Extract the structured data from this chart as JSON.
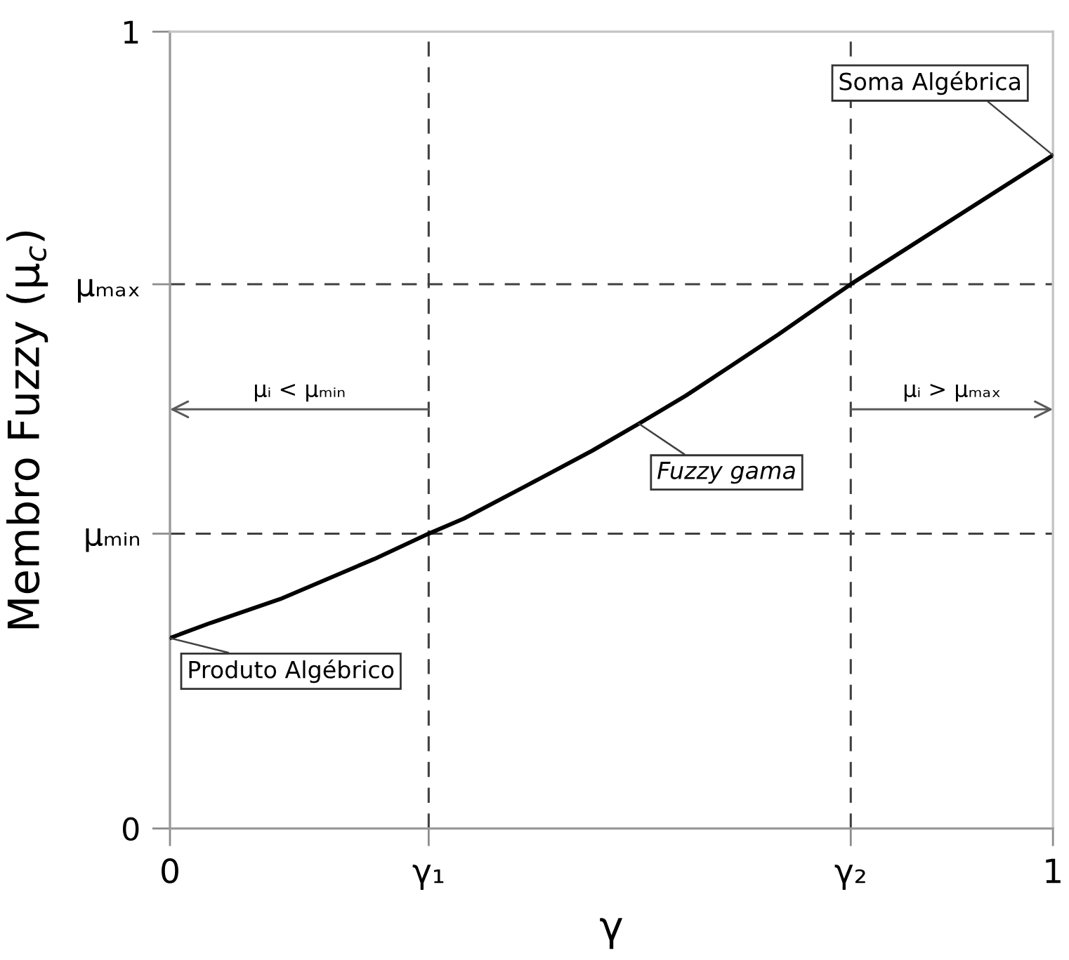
{
  "chart_data": {
    "type": "line",
    "x": [
      0,
      0.046,
      0.125,
      0.231,
      0.293,
      0.333,
      0.405,
      0.478,
      0.531,
      0.584,
      0.636,
      0.689,
      0.742,
      0.771,
      0.884,
      1
    ],
    "values": [
      0.239,
      0.258,
      0.288,
      0.338,
      0.37,
      0.389,
      0.431,
      0.474,
      0.508,
      0.543,
      0.581,
      0.62,
      0.661,
      0.683,
      0.763,
      0.845
    ],
    "color": "#000000",
    "xlabel": "γ",
    "ylabel": "Membro Fuzzy (μ$_{c}$)",
    "xlim": [
      0,
      1
    ],
    "ylim": [
      0,
      1
    ],
    "xticks": [
      0,
      {
        "value": 0.293,
        "label": "γ₁"
      },
      {
        "value": 0.771,
        "label": "γ₂"
      },
      1
    ],
    "yticks": [
      0,
      {
        "value": 0.37,
        "label": "μₘᵢₙ"
      },
      {
        "value": 0.683,
        "label": "μₘₐₓ"
      },
      1
    ],
    "ref_lines": [
      {
        "axis": "x",
        "value": 0.293,
        "color": "#404040",
        "line_style": "dashed"
      },
      {
        "axis": "x",
        "value": 0.771,
        "color": "#404040",
        "line_style": "dashed"
      },
      {
        "axis": "y",
        "value": 0.37,
        "color": "#404040",
        "line_style": "dashed"
      },
      {
        "axis": "y",
        "value": 0.683,
        "color": "#404040",
        "line_style": "dashed"
      }
    ],
    "annotations": [
      "μᵢ < μₘᵢₙ",
      "μᵢ > μₘₐₓ",
      {
        "text": "Soma Algébrica",
        "x": 1,
        "y": 0.845
      },
      {
        "text": "Fuzzy gama",
        "x": 0.531,
        "y": 0.508
      },
      {
        "text": "Produto Algébrico",
        "x": 0,
        "y": 0.239
      }
    ]
  }
}
